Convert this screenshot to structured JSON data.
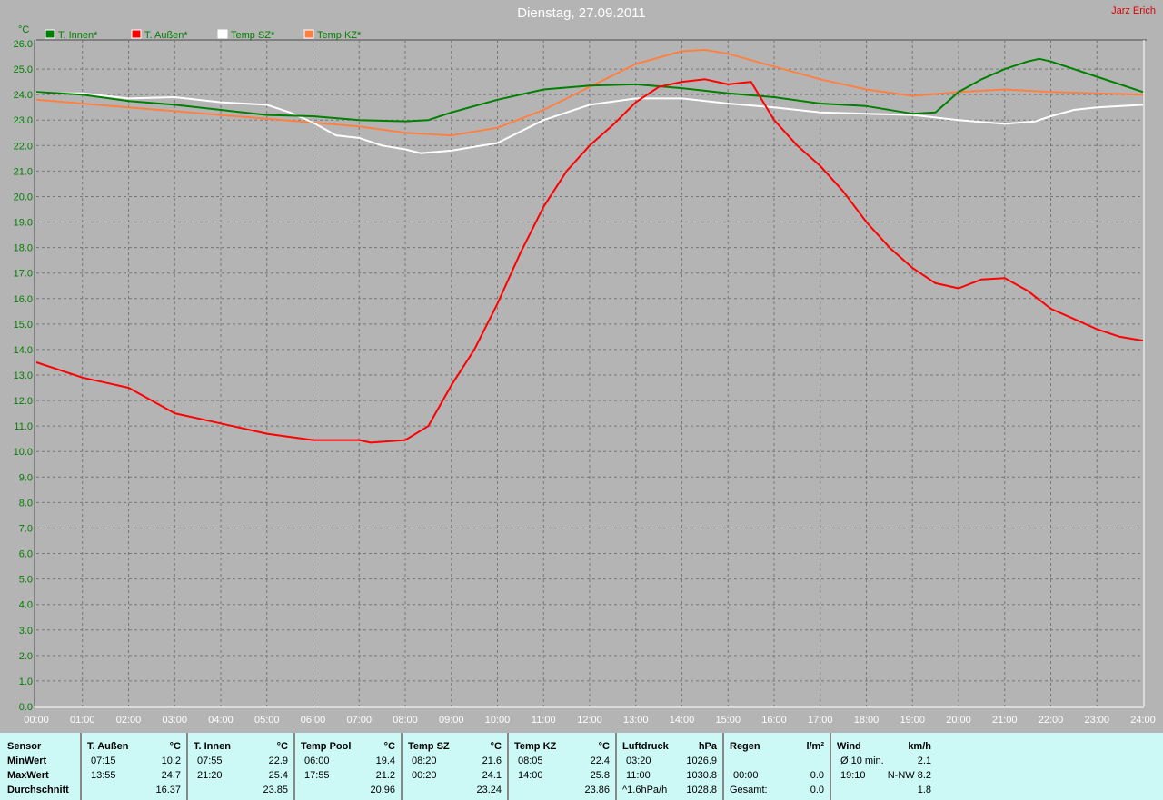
{
  "title": "Dienstag, 27.09.2011",
  "author": "Jarz Erich",
  "chart_data": {
    "type": "line",
    "title": "Dienstag, 27.09.2011",
    "ylabel": "°C",
    "ylim": [
      0,
      26
    ],
    "xlim": [
      "00:00",
      "24:00"
    ],
    "grid": true,
    "legend": "top-left",
    "yticks": [
      "0.0",
      "1.0",
      "2.0",
      "3.0",
      "4.0",
      "5.0",
      "6.0",
      "7.0",
      "8.0",
      "9.0",
      "10.0",
      "11.0",
      "12.0",
      "13.0",
      "14.0",
      "15.0",
      "16.0",
      "17.0",
      "18.0",
      "19.0",
      "20.0",
      "21.0",
      "22.0",
      "23.0",
      "24.0",
      "25.0",
      "26.0"
    ],
    "xticks": [
      "00:00",
      "01:00",
      "02:00",
      "03:00",
      "04:00",
      "05:00",
      "06:00",
      "07:00",
      "08:00",
      "09:00",
      "10:00",
      "11:00",
      "12:00",
      "13:00",
      "14:00",
      "15:00",
      "16:00",
      "17:00",
      "18:00",
      "19:00",
      "20:00",
      "21:00",
      "22:00",
      "23:00",
      "24:00"
    ],
    "series": [
      {
        "name": "T. Innen*",
        "color": "#008000",
        "x": [
          "00:00",
          "01:00",
          "02:00",
          "03:00",
          "04:00",
          "05:00",
          "06:00",
          "07:00",
          "08:00",
          "08:30",
          "09:00",
          "10:00",
          "11:00",
          "12:00",
          "13:00",
          "14:00",
          "15:00",
          "16:00",
          "17:00",
          "18:00",
          "19:00",
          "19:30",
          "20:00",
          "20:30",
          "21:00",
          "21:30",
          "21:45",
          "22:00",
          "23:00",
          "24:00"
        ],
        "y": [
          24.1,
          24.0,
          23.75,
          23.6,
          23.4,
          23.2,
          23.15,
          23.0,
          22.95,
          23.0,
          23.3,
          23.8,
          24.2,
          24.35,
          24.4,
          24.25,
          24.05,
          23.9,
          23.65,
          23.55,
          23.25,
          23.3,
          24.1,
          24.6,
          25.0,
          25.3,
          25.4,
          25.3,
          24.7,
          24.1
        ]
      },
      {
        "name": "T. Außen*",
        "color": "#ff0000",
        "x": [
          "00:00",
          "01:00",
          "02:00",
          "03:00",
          "04:00",
          "05:00",
          "06:00",
          "07:00",
          "07:15",
          "08:00",
          "08:30",
          "09:00",
          "09:30",
          "10:00",
          "10:30",
          "11:00",
          "11:30",
          "12:00",
          "12:30",
          "13:00",
          "13:30",
          "14:00",
          "14:30",
          "15:00",
          "15:30",
          "16:00",
          "16:30",
          "17:00",
          "17:30",
          "18:00",
          "18:30",
          "19:00",
          "19:30",
          "20:00",
          "20:30",
          "21:00",
          "21:30",
          "22:00",
          "22:30",
          "23:00",
          "23:30",
          "24:00"
        ],
        "y": [
          13.5,
          12.9,
          12.5,
          11.5,
          11.1,
          10.7,
          10.45,
          10.45,
          10.35,
          10.45,
          11.0,
          12.6,
          14.0,
          15.8,
          17.8,
          19.6,
          21.0,
          22.0,
          22.8,
          23.7,
          24.3,
          24.5,
          24.6,
          24.4,
          24.5,
          23.0,
          22.0,
          21.2,
          20.2,
          19.0,
          18.0,
          17.2,
          16.6,
          16.4,
          16.75,
          16.8,
          16.3,
          15.6,
          15.2,
          14.8,
          14.5,
          14.35
        ]
      },
      {
        "name": "Temp SZ*",
        "color": "#ffffff",
        "x": [
          "00:00",
          "01:00",
          "02:00",
          "03:00",
          "04:00",
          "05:00",
          "05:30",
          "06:00",
          "06:30",
          "07:00",
          "07:30",
          "08:00",
          "08:20",
          "09:00",
          "10:00",
          "11:00",
          "12:00",
          "13:00",
          "14:00",
          "15:00",
          "16:00",
          "17:00",
          "18:00",
          "19:00",
          "20:00",
          "21:00",
          "21:40",
          "22:00",
          "22:30",
          "23:00",
          "24:00"
        ],
        "y": [
          24.05,
          24.05,
          23.85,
          23.9,
          23.7,
          23.6,
          23.3,
          22.9,
          22.4,
          22.3,
          22.0,
          21.85,
          21.7,
          21.8,
          22.1,
          23.0,
          23.6,
          23.85,
          23.85,
          23.65,
          23.5,
          23.3,
          23.25,
          23.2,
          23.0,
          22.85,
          22.95,
          23.15,
          23.4,
          23.5,
          23.6
        ]
      },
      {
        "name": "Temp KZ*",
        "color": "#ff8040",
        "x": [
          "00:00",
          "01:00",
          "02:00",
          "03:00",
          "04:00",
          "05:00",
          "06:00",
          "07:00",
          "08:00",
          "09:00",
          "10:00",
          "11:00",
          "12:00",
          "13:00",
          "14:00",
          "14:30",
          "15:00",
          "16:00",
          "17:00",
          "18:00",
          "19:00",
          "20:00",
          "21:00",
          "22:00",
          "23:00",
          "24:00"
        ],
        "y": [
          23.8,
          23.65,
          23.5,
          23.35,
          23.2,
          23.05,
          22.9,
          22.75,
          22.5,
          22.4,
          22.7,
          23.4,
          24.3,
          25.2,
          25.7,
          25.75,
          25.6,
          25.1,
          24.6,
          24.2,
          23.95,
          24.1,
          24.2,
          24.1,
          24.05,
          24.0
        ]
      }
    ]
  },
  "table": {
    "row_labels": [
      "Sensor",
      "MinWert",
      "MaxWert",
      "Durchschnitt"
    ],
    "columns": [
      {
        "name": "T. Außen",
        "unit": "°C",
        "min_time": "07:15",
        "min": "10.2",
        "max_time": "13:55",
        "max": "24.7",
        "avg_label": "",
        "avg": "16.37"
      },
      {
        "name": "T. Innen",
        "unit": "°C",
        "min_time": "07:55",
        "min": "22.9",
        "max_time": "21:20",
        "max": "25.4",
        "avg_label": "",
        "avg": "23.85"
      },
      {
        "name": "Temp Pool",
        "unit": "°C",
        "min_time": "06:00",
        "min": "19.4",
        "max_time": "17:55",
        "max": "21.2",
        "avg_label": "",
        "avg": "20.96"
      },
      {
        "name": "Temp SZ",
        "unit": "°C",
        "min_time": "08:20",
        "min": "21.6",
        "max_time": "00:20",
        "max": "24.1",
        "avg_label": "",
        "avg": "23.24"
      },
      {
        "name": "Temp KZ",
        "unit": "°C",
        "min_time": "08:05",
        "min": "22.4",
        "max_time": "14:00",
        "max": "25.8",
        "avg_label": "",
        "avg": "23.86"
      },
      {
        "name": "Luftdruck",
        "unit": "hPa",
        "min_time": "03:20",
        "min": "1026.9",
        "max_time": "11:00",
        "max": "1030.8",
        "avg_label": "^1.6hPa/h",
        "avg": "1028.8"
      },
      {
        "name": "Regen",
        "unit": "l/m²",
        "min_time": "",
        "min": "",
        "max_time": "00:00",
        "max": "0.0",
        "avg_label": "Gesamt:",
        "avg": "0.0"
      },
      {
        "name": "Wind",
        "unit": "km/h",
        "min_time": "Ø 10 min.",
        "min": "2.1",
        "max_time": "19:10",
        "max": "N-NW 8.2",
        "avg_label": "",
        "avg": "1.8"
      }
    ]
  }
}
